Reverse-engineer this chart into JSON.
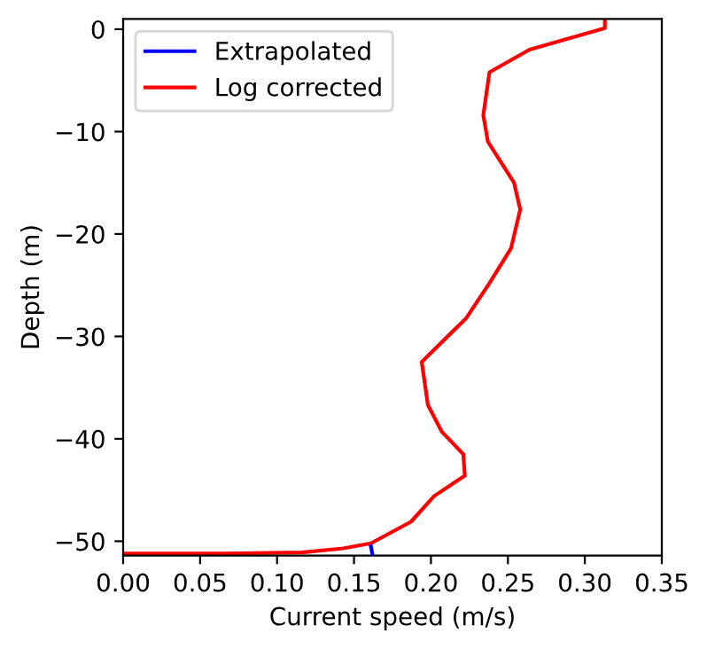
{
  "chart_data": {
    "type": "line",
    "xlabel": "Current speed (m/s)",
    "ylabel": "Depth (m)",
    "xlim": [
      0,
      0.35
    ],
    "xticks": [
      {
        "value": 0,
        "label": "0.00"
      },
      0.05,
      {
        "value": 0.1,
        "label": "0.10"
      },
      0.15,
      {
        "value": 0.2,
        "label": "0.20"
      },
      0.25,
      {
        "value": 0.3,
        "label": "0.30"
      },
      0.35
    ],
    "ylim": [
      -51.4,
      1.0
    ],
    "yticks": [
      {
        "value": -50,
        "label": "−50"
      },
      {
        "value": -40,
        "label": "−40"
      },
      {
        "value": -30,
        "label": "−30"
      },
      {
        "value": -20,
        "label": "−20"
      },
      {
        "value": -10,
        "label": "−10"
      },
      0
    ],
    "grid": false,
    "legend": "top left",
    "marker": "none",
    "line_style": "solid",
    "series": [
      {
        "name": "Extrapolated",
        "color": "#0000ff",
        "x": [
          0.161,
          0.162
        ],
        "values": [
          -50.5,
          -51.3
        ]
      },
      {
        "name": "Log corrected",
        "color": "#ff0000",
        "x": [
          0.313,
          0.313,
          0.264,
          0.238,
          0.234,
          0.237,
          0.254,
          0.258,
          0.252,
          0.238,
          0.223,
          0.194,
          0.198,
          0.207,
          0.221,
          0.222,
          0.202,
          0.187,
          0.161,
          0.143,
          0.116,
          0.066,
          0.0
        ],
        "values": [
          1.0,
          0.1,
          -2.0,
          -4.2,
          -8.4,
          -11.0,
          -15.0,
          -17.6,
          -21.4,
          -24.8,
          -28.2,
          -32.5,
          -36.7,
          -39.3,
          -41.5,
          -43.6,
          -45.6,
          -48.1,
          -50.2,
          -50.7,
          -51.1,
          -51.2,
          -51.2
        ]
      }
    ]
  }
}
